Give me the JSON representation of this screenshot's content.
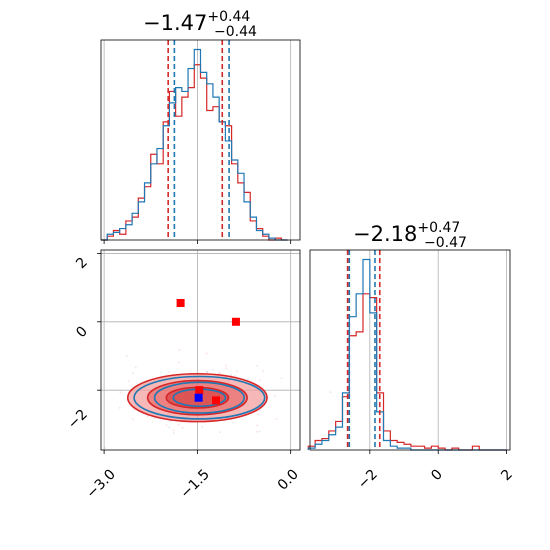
{
  "chart_data": [
    {
      "panel": "param1-marginal",
      "type": "histogram",
      "title": {
        "value": "−1.47",
        "upper": "+0.44",
        "lower": "−0.44"
      },
      "xlim": [
        -3.05,
        0.15
      ],
      "grid": true,
      "quantile_lines": {
        "red": [
          -1.97,
          -1.1
        ],
        "blue": [
          -1.87,
          -0.99
        ]
      },
      "series": [
        {
          "color": "#d62728",
          "x": [
            -3.0,
            -2.9,
            -2.8,
            -2.7,
            -2.6,
            -2.5,
            -2.4,
            -2.3,
            -2.2,
            -2.1,
            -2.0,
            -1.9,
            -1.8,
            -1.7,
            -1.6,
            -1.5,
            -1.4,
            -1.3,
            -1.2,
            -1.1,
            -1.0,
            -0.9,
            -0.8,
            -0.7,
            -0.6,
            -0.5,
            -0.4,
            -0.3,
            -0.2,
            -0.1
          ],
          "y": [
            0.0,
            0.02,
            0.05,
            0.03,
            0.1,
            0.12,
            0.22,
            0.28,
            0.45,
            0.4,
            0.62,
            0.78,
            0.65,
            0.75,
            0.8,
            0.92,
            0.85,
            0.68,
            0.7,
            0.62,
            0.6,
            0.4,
            0.3,
            0.25,
            0.1,
            0.06,
            0.02,
            0.0,
            0.01,
            0.0
          ]
        },
        {
          "color": "#1f77b4",
          "x": [
            -3.0,
            -2.9,
            -2.8,
            -2.7,
            -2.6,
            -2.5,
            -2.4,
            -2.3,
            -2.2,
            -2.1,
            -2.0,
            -1.9,
            -1.8,
            -1.7,
            -1.6,
            -1.5,
            -1.4,
            -1.3,
            -1.2,
            -1.1,
            -1.0,
            -0.9,
            -0.8,
            -0.7,
            -0.6,
            -0.5,
            -0.4,
            -0.3,
            -0.2,
            -0.1
          ],
          "y": [
            0.0,
            0.03,
            0.04,
            0.06,
            0.08,
            0.14,
            0.2,
            0.3,
            0.4,
            0.48,
            0.6,
            0.72,
            0.8,
            0.78,
            0.9,
            1.0,
            0.88,
            0.82,
            0.75,
            0.62,
            0.52,
            0.42,
            0.35,
            0.2,
            0.12,
            0.05,
            0.03,
            0.01,
            0.0,
            0.0
          ]
        }
      ]
    },
    {
      "panel": "joint-2d",
      "type": "contour-scatter",
      "xlim": [
        -3.05,
        0.15
      ],
      "ylim": [
        -3.75,
        2.1
      ],
      "xticks": [
        "−3.0",
        "−1.5",
        "0.0"
      ],
      "xtick_values": [
        -3.0,
        -1.5,
        0.0
      ],
      "yticks": [
        "−2",
        "0",
        "2"
      ],
      "ytick_values": [
        -2,
        0,
        2
      ],
      "grid": true,
      "markers": [
        {
          "x": -1.77,
          "y": 0.55,
          "color": "#ff0000"
        },
        {
          "x": -0.88,
          "y": 0.0,
          "color": "#ff0000"
        },
        {
          "x": -1.47,
          "y": -2.0,
          "color": "#ff0000"
        },
        {
          "x": -1.2,
          "y": -2.3,
          "color": "#ff0000"
        },
        {
          "x": -1.48,
          "y": -2.22,
          "color": "#0000ff"
        }
      ],
      "contours": {
        "center": [
          -1.5,
          -2.22
        ],
        "red_radii": [
          [
            1.12,
            0.7
          ],
          [
            0.8,
            0.5
          ],
          [
            0.5,
            0.3
          ]
        ],
        "blue_radii": [
          [
            1.05,
            0.62
          ],
          [
            0.72,
            0.45
          ],
          [
            0.42,
            0.25
          ]
        ],
        "colors": {
          "red": "#d62728",
          "blue": "#1f77b4"
        }
      }
    },
    {
      "panel": "param2-marginal",
      "type": "histogram",
      "title": {
        "value": "−2.18",
        "upper": "+0.47",
        "lower": "−0.47"
      },
      "xlim": [
        -3.75,
        2.1
      ],
      "xticks": [
        "−2",
        "0",
        "2"
      ],
      "xtick_values": [
        -2,
        0,
        2
      ],
      "grid": true,
      "quantile_lines": {
        "red": [
          -2.65,
          -1.71
        ],
        "blue": [
          -2.6,
          -1.85
        ]
      },
      "series": [
        {
          "color": "#d62728",
          "x": [
            -3.7,
            -3.5,
            -3.3,
            -3.1,
            -2.9,
            -2.7,
            -2.5,
            -2.3,
            -2.1,
            -1.9,
            -1.7,
            -1.5,
            -1.3,
            -1.1,
            -0.9,
            -0.7,
            -0.5,
            -0.3,
            -0.1,
            0.1,
            0.3,
            0.5,
            0.7,
            0.9,
            1.1,
            1.3,
            1.5,
            1.7,
            1.9
          ],
          "y": [
            0.02,
            0.05,
            0.06,
            0.1,
            0.15,
            0.28,
            0.6,
            0.62,
            0.82,
            0.8,
            0.3,
            0.1,
            0.05,
            0.04,
            0.03,
            0.02,
            0.02,
            0.01,
            0.02,
            0.01,
            0.0,
            0.01,
            0.0,
            0.0,
            0.02,
            0.0,
            0.0,
            0.0,
            0.0
          ]
        },
        {
          "color": "#1f77b4",
          "x": [
            -3.7,
            -3.5,
            -3.3,
            -3.1,
            -2.9,
            -2.7,
            -2.5,
            -2.3,
            -2.1,
            -1.9,
            -1.7,
            -1.5,
            -1.3,
            -1.1,
            -0.9,
            -0.7,
            -0.5,
            -0.3,
            -0.1,
            0.1,
            0.3,
            0.5,
            0.7,
            0.9,
            1.1,
            1.3,
            1.5,
            1.7,
            1.9
          ],
          "y": [
            0.01,
            0.03,
            0.05,
            0.08,
            0.12,
            0.3,
            0.7,
            0.82,
            1.0,
            0.72,
            0.2,
            0.05,
            0.02,
            0.01,
            0.01,
            0.0,
            0.0,
            0.0,
            0.0,
            0.0,
            0.0,
            0.0,
            0.0,
            0.0,
            0.0,
            0.0,
            0.0,
            0.0,
            0.0
          ]
        }
      ]
    }
  ]
}
